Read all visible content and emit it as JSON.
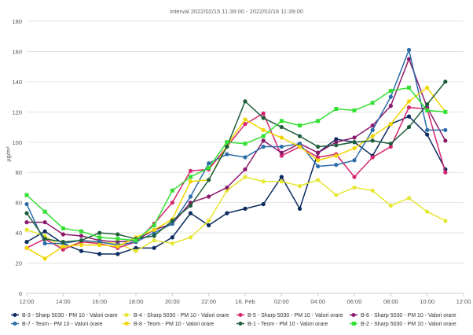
{
  "chart_data": {
    "type": "line",
    "title": "Interval 2022/02/15 11:39:00 - 2022/02/16 11:39:00",
    "ylabel": "µg/m³",
    "xlabel": "",
    "ylim": [
      0,
      180
    ],
    "yticks": [
      0,
      20,
      40,
      60,
      80,
      100,
      120,
      140,
      160,
      180
    ],
    "x_ticks": [
      "12:00",
      "14:00",
      "16:00",
      "18:00",
      "20:00",
      "22:00",
      "16. Feb",
      "02:00",
      "04:00",
      "06:00",
      "08:00",
      "10:00",
      "12:00"
    ],
    "x_hours": [
      12,
      13,
      14,
      15,
      16,
      17,
      18,
      19,
      20,
      21,
      22,
      23,
      24,
      25,
      26,
      27,
      28,
      29,
      30,
      31,
      32,
      33,
      34,
      35
    ],
    "grid": true,
    "legend_position": "bottom",
    "series": [
      {
        "name": "B-3 - Sharp 5030 - PM 10 - Valori orare",
        "color": "#0b2a5e",
        "marker": "circle",
        "values": [
          34,
          41,
          33,
          28,
          26,
          26,
          30,
          30,
          37,
          53,
          45,
          53,
          56,
          59,
          77,
          56,
          93,
          102,
          100,
          91,
          112,
          117,
          105,
          82
        ]
      },
      {
        "name": "B-4 - Sharp 5030 - PM 10 - Valori orare",
        "color": "#e6e632",
        "marker": "circle",
        "values": [
          42,
          38,
          30,
          34,
          34,
          33,
          28,
          35,
          33,
          37,
          48,
          68,
          77,
          74,
          74,
          71,
          75,
          65,
          70,
          68,
          58,
          63,
          54,
          48
        ]
      },
      {
        "name": "B-5 - Sharp 5030 - PM 10 - Valori orare",
        "color": "#d6246e",
        "marker": "circle",
        "values": [
          30,
          36,
          29,
          34,
          33,
          30,
          34,
          46,
          60,
          81,
          82,
          97,
          112,
          119,
          91,
          97,
          90,
          92,
          77,
          90,
          97,
          123,
          122,
          80
        ]
      },
      {
        "name": "B-6 - Sharp 5030 - PM 10 - Valori orare",
        "color": "#8b1a6e",
        "marker": "circle",
        "values": [
          47,
          47,
          39,
          38,
          35,
          34,
          35,
          42,
          46,
          60,
          64,
          70,
          82,
          101,
          93,
          99,
          93,
          100,
          103,
          111,
          124,
          155,
          123,
          101
        ]
      },
      {
        "name": "B-7 - Teom - PM 10 - Valori orare",
        "color": "#2b6ca8",
        "marker": "circle",
        "values": [
          59,
          33,
          33,
          35,
          34,
          32,
          34,
          40,
          46,
          64,
          86,
          92,
          90,
          97,
          97,
          99,
          84,
          85,
          88,
          108,
          130,
          161,
          108,
          108
        ]
      },
      {
        "name": "B-8 - Teom - PM 10 - Valori orare",
        "color": "#f2d600",
        "marker": "circle",
        "values": [
          30,
          23,
          31,
          32,
          32,
          31,
          37,
          42,
          49,
          74,
          75,
          98,
          115,
          108,
          103,
          97,
          88,
          91,
          96,
          104,
          112,
          127,
          136,
          120
        ]
      },
      {
        "name": "B-1 - Teom - PM 10 - Valori orare",
        "color": "#1f5e3c",
        "marker": "circle",
        "values": [
          53,
          36,
          34,
          35,
          40,
          39,
          36,
          38,
          48,
          58,
          75,
          97,
          127,
          116,
          110,
          104,
          97,
          98,
          100,
          101,
          99,
          110,
          125,
          140
        ]
      },
      {
        "name": "B-2 - Sharp 5030 - PM 10 - Valori orare",
        "color": "#33e033",
        "marker": "square",
        "values": [
          65,
          54,
          43,
          41,
          37,
          36,
          35,
          45,
          68,
          77,
          83,
          100,
          99,
          104,
          114,
          111,
          114,
          122,
          121,
          126,
          134,
          136,
          121,
          120
        ]
      }
    ]
  }
}
